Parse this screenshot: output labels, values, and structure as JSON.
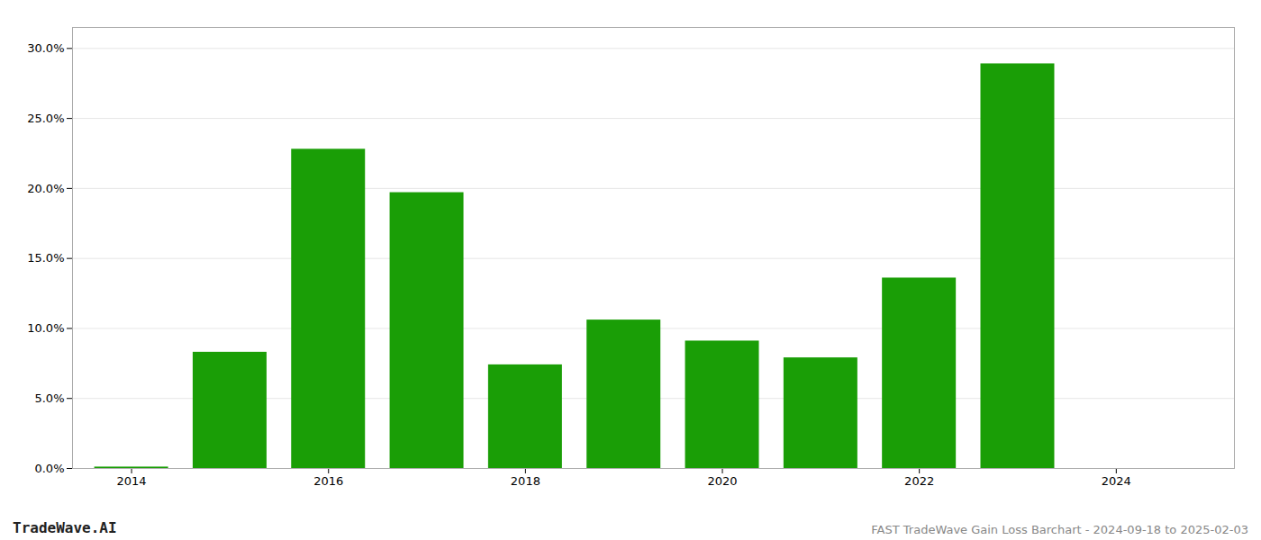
{
  "chart_data": {
    "type": "bar",
    "x": [
      2014,
      2015,
      2016,
      2017,
      2018,
      2019,
      2020,
      2021,
      2022,
      2023,
      2024
    ],
    "values": [
      0.001,
      0.083,
      0.228,
      0.197,
      0.074,
      0.106,
      0.091,
      0.079,
      0.136,
      0.289,
      0.0
    ],
    "color": "#1a9e06",
    "xlim": [
      2013.4,
      2025.2
    ],
    "xticks": [
      2014,
      2016,
      2018,
      2020,
      2022,
      2024
    ],
    "ylim": [
      0,
      0.315
    ],
    "yticks": [
      {
        "value": 0.0,
        "label": "0.0%"
      },
      {
        "value": 0.05,
        "label": "5.0%"
      },
      {
        "value": 0.1,
        "label": "10.0%"
      },
      {
        "value": 0.15,
        "label": "15.0%"
      },
      {
        "value": 0.2,
        "label": "20.0%"
      },
      {
        "value": 0.25,
        "label": "25.0%"
      },
      {
        "value": 0.3,
        "label": "30.0%"
      }
    ],
    "grid": true,
    "annotations": [
      "TradeWave.AI",
      "FAST TradeWave Gain Loss Barchart - 2024-09-18 to 2025-02-03"
    ]
  }
}
